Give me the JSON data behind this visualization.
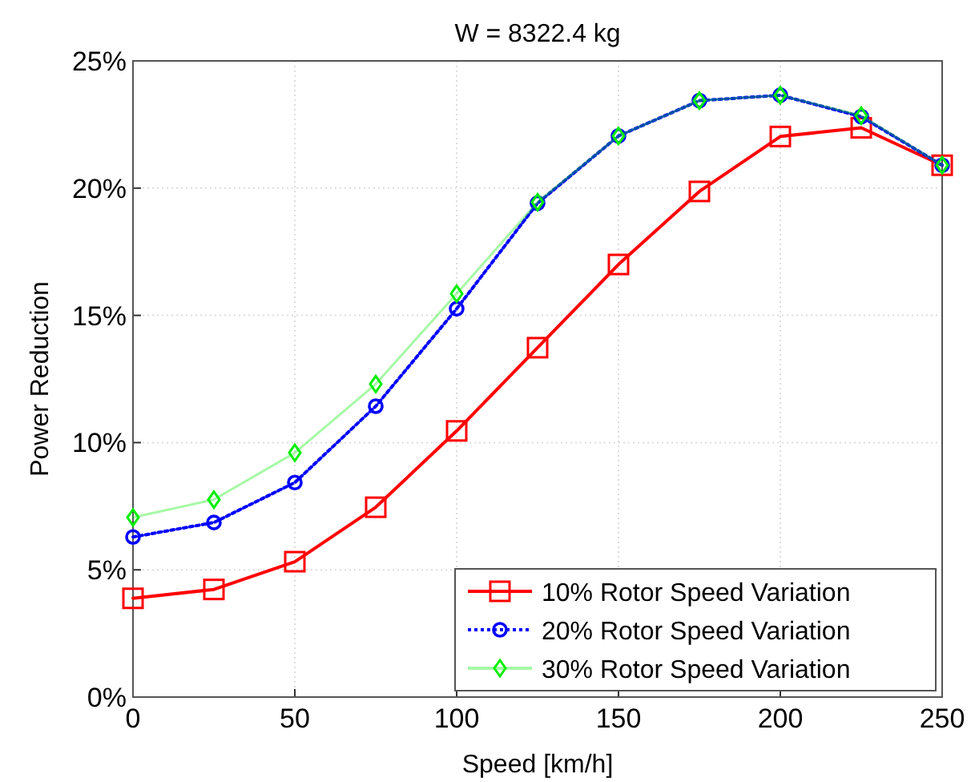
{
  "chart_data": {
    "type": "line",
    "title": "W = 8322.4 kg",
    "xlabel": "Speed [km/h]",
    "ylabel": "Power Reduction",
    "x": [
      0,
      25,
      50,
      75,
      100,
      125,
      150,
      175,
      200,
      225,
      250
    ],
    "series": [
      {
        "name": "10% Rotor Speed Variation",
        "color": "#ff0000",
        "marker": "square",
        "line_style": "solid",
        "values": [
          3.88,
          4.23,
          5.32,
          7.46,
          10.46,
          13.73,
          17.0,
          19.87,
          22.03,
          22.37,
          20.9
        ]
      },
      {
        "name": "20% Rotor Speed Variation",
        "color": "#0000ff",
        "marker": "circle",
        "line_style": "dotted",
        "values": [
          6.29,
          6.86,
          8.43,
          11.43,
          15.26,
          19.41,
          22.05,
          23.44,
          23.65,
          22.81,
          20.9
        ]
      },
      {
        "name": "30% Rotor Speed Variation",
        "color": "#00ee00",
        "marker": "diamond",
        "line_style": "solid",
        "values": [
          7.06,
          7.76,
          9.6,
          12.3,
          15.85,
          19.45,
          22.05,
          23.44,
          23.65,
          22.85,
          20.9
        ]
      }
    ],
    "xlim": [
      0,
      250
    ],
    "xticks": [
      0,
      50,
      100,
      150,
      200,
      250
    ],
    "ylim": [
      0,
      25
    ],
    "yticks": [
      {
        "value": 0,
        "label": "0%"
      },
      {
        "value": 5,
        "label": "5%"
      },
      {
        "value": 10,
        "label": "10%"
      },
      {
        "value": 15,
        "label": "15%"
      },
      {
        "value": 20,
        "label": "20%"
      },
      {
        "value": 25,
        "label": "25%"
      }
    ],
    "grid": true,
    "legend": "bottom right"
  }
}
